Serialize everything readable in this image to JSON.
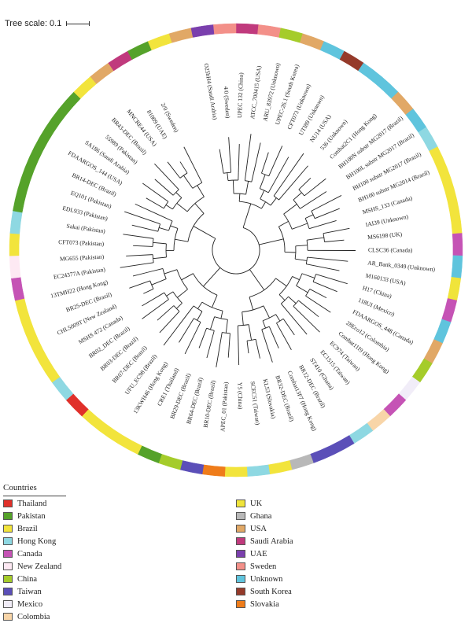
{
  "scale_label": "Tree scale: 0.1",
  "legend": {
    "title": "Countries",
    "left": [
      {
        "name": "Thailand",
        "color": "#e0302a"
      },
      {
        "name": "Pakistan",
        "color": "#55a22a"
      },
      {
        "name": "Brazil",
        "color": "#f2e43c"
      },
      {
        "name": "Hong Kong",
        "color": "#8ed8e2"
      },
      {
        "name": "Canada",
        "color": "#c553b5"
      },
      {
        "name": "New Zealand",
        "color": "#fde9f3"
      },
      {
        "name": "China",
        "color": "#a5cc2a"
      },
      {
        "name": "Taiwan",
        "color": "#5b4fb8"
      },
      {
        "name": "Mexico",
        "color": "#f1edf8"
      },
      {
        "name": "Colombia",
        "color": "#f8d5a8"
      }
    ],
    "right": [
      {
        "name": "UK",
        "color": "#f0e43a"
      },
      {
        "name": "Ghana",
        "color": "#b8b8b8"
      },
      {
        "name": "USA",
        "color": "#e1a866"
      },
      {
        "name": "Saudi Arabia",
        "color": "#c03a7d"
      },
      {
        "name": "UAE",
        "color": "#7a3fad"
      },
      {
        "name": "Sweden",
        "color": "#f39089"
      },
      {
        "name": "Unknown",
        "color": "#5fc4dd"
      },
      {
        "name": "South Korea",
        "color": "#953a2a"
      },
      {
        "name": "Slovakia",
        "color": "#ef7c1a"
      }
    ]
  },
  "tree": {
    "leaves": [
      {
        "label": "O25bH4 (Saudi Arabia)",
        "color": "#c03a7d"
      },
      {
        "label": "4/0 (Sweden)",
        "color": "#f39089"
      },
      {
        "label": "UPEC 132 (China)",
        "color": "#a5cc2a"
      },
      {
        "label": "ATCC_700415 (USA)",
        "color": "#e1a866"
      },
      {
        "label": "ARU_83972 (Unknown)",
        "color": "#5fc4dd"
      },
      {
        "label": "UPEC-26.1 (South Korea)",
        "color": "#953a2a"
      },
      {
        "label": "CFT073 (Unknown)",
        "color": "#5fc4dd"
      },
      {
        "label": "UTI89 (Unknown)",
        "color": "#5fc4dd"
      },
      {
        "label": "NU14 (USA)",
        "color": "#e1a866"
      },
      {
        "label": "536 (Unknown)",
        "color": "#5fc4dd"
      },
      {
        "label": "Combat2C1 (Hong Kong)",
        "color": "#8ed8e2"
      },
      {
        "label": "BH100N substr MG2017 (Brazil)",
        "color": "#f2e43c"
      },
      {
        "label": "BH100L substr MG2017 (Brazil)",
        "color": "#f2e43c"
      },
      {
        "label": "BH100 substr MG2017 (Brazil)",
        "color": "#f2e43c"
      },
      {
        "label": "BH100 substr MG2014 (Brazil)",
        "color": "#f2e43c"
      },
      {
        "label": "MSHS_133 (Canada)",
        "color": "#c553b5"
      },
      {
        "label": "IAI39 (Unknown)",
        "color": "#5fc4dd"
      },
      {
        "label": "MS6198 (UK)",
        "color": "#f0e43a"
      },
      {
        "label": "CLSC36 (Canada)",
        "color": "#c553b5"
      },
      {
        "label": "AR_Bank_0349 (Unknown)",
        "color": "#5fc4dd"
      },
      {
        "label": "M160133 (USA)",
        "color": "#e1a866"
      },
      {
        "label": "H17 (China)",
        "color": "#a5cc2a"
      },
      {
        "label": "118UI (Mexico)",
        "color": "#f1edf8"
      },
      {
        "label": "FDAARGOS_448 (Canada)",
        "color": "#c553b5"
      },
      {
        "label": "28Eco12 (Colombia)",
        "color": "#f8d5a8"
      },
      {
        "label": "Combat11I9 (Hong Kong)",
        "color": "#8ed8e2"
      },
      {
        "label": "EC974 (Taiwan)",
        "color": "#5b4fb8"
      },
      {
        "label": "EC1515 (Taiwan)",
        "color": "#5b4fb8"
      },
      {
        "label": "ST410 (Ghana)",
        "color": "#b8b8b8"
      },
      {
        "label": "BR12-DEC (Brazil)",
        "color": "#f2e43c"
      },
      {
        "label": "Combat13F7 (Hong Kong)",
        "color": "#8ed8e2"
      },
      {
        "label": "BR32-DEC (Brazil)",
        "color": "#f2e43c"
      },
      {
        "label": "KL53 (Slovakia)",
        "color": "#ef7c1a"
      },
      {
        "label": "SCEC51 (Taiwan)",
        "color": "#5b4fb8"
      },
      {
        "label": "Y5 (China)",
        "color": "#a5cc2a"
      },
      {
        "label": "APEC_01 (Pakistan)",
        "color": "#55a22a"
      },
      {
        "label": "BR10-DEC (Brazil)",
        "color": "#f2e43c"
      },
      {
        "label": "BR64-DEC (Brazil)",
        "color": "#f2e43c"
      },
      {
        "label": "BR29-DEC (Brazil)",
        "color": "#f2e43c"
      },
      {
        "label": "CRE1 (Thailand)",
        "color": "#e0302a"
      },
      {
        "label": "13KWH46 (Hong Kong)",
        "color": "#8ed8e2"
      },
      {
        "label": "UFU_EC98 (Brazil)",
        "color": "#f2e43c"
      },
      {
        "label": "BR07-DEC (Brazil)",
        "color": "#f2e43c"
      },
      {
        "label": "BR03-DEC (Brazil)",
        "color": "#f2e43c"
      },
      {
        "label": "BR02_DEC (Brazil)",
        "color": "#f2e43c"
      },
      {
        "label": "MSHS 472 (Canada)",
        "color": "#c553b5"
      },
      {
        "label": "CHL5009T (New Zealand)",
        "color": "#fde9f3"
      },
      {
        "label": "BR25-DEC (Brazil)",
        "color": "#f2e43c"
      },
      {
        "label": "13TMH22 (Hong Kong)",
        "color": "#8ed8e2"
      },
      {
        "label": "EC24377A (Pakistan)",
        "color": "#55a22a"
      },
      {
        "label": "MG655 (Pakistan)",
        "color": "#55a22a"
      },
      {
        "label": "CFT073 (Pakistan)",
        "color": "#55a22a"
      },
      {
        "label": "Sakai (Pakistan)",
        "color": "#55a22a"
      },
      {
        "label": "EDL933 (Pakistan)",
        "color": "#55a22a"
      },
      {
        "label": "EQ101 (Pakistan)",
        "color": "#55a22a"
      },
      {
        "label": "BR14-DEC (Brazil)",
        "color": "#f2e43c"
      },
      {
        "label": "FDAARGOS_144 (USA)",
        "color": "#e1a866"
      },
      {
        "label": "SA186 (Saudi Arabia)",
        "color": "#c03a7d"
      },
      {
        "label": "55989 (Pakistan)",
        "color": "#55a22a"
      },
      {
        "label": "BR43-DEC (Brazil)",
        "color": "#f2e43c"
      },
      {
        "label": "MNCRE44 (USA)",
        "color": "#e1a866"
      },
      {
        "label": "81009 (UAE)",
        "color": "#7a3fad"
      },
      {
        "label": "2/0 (Sweden)",
        "color": "#f39089"
      }
    ]
  }
}
